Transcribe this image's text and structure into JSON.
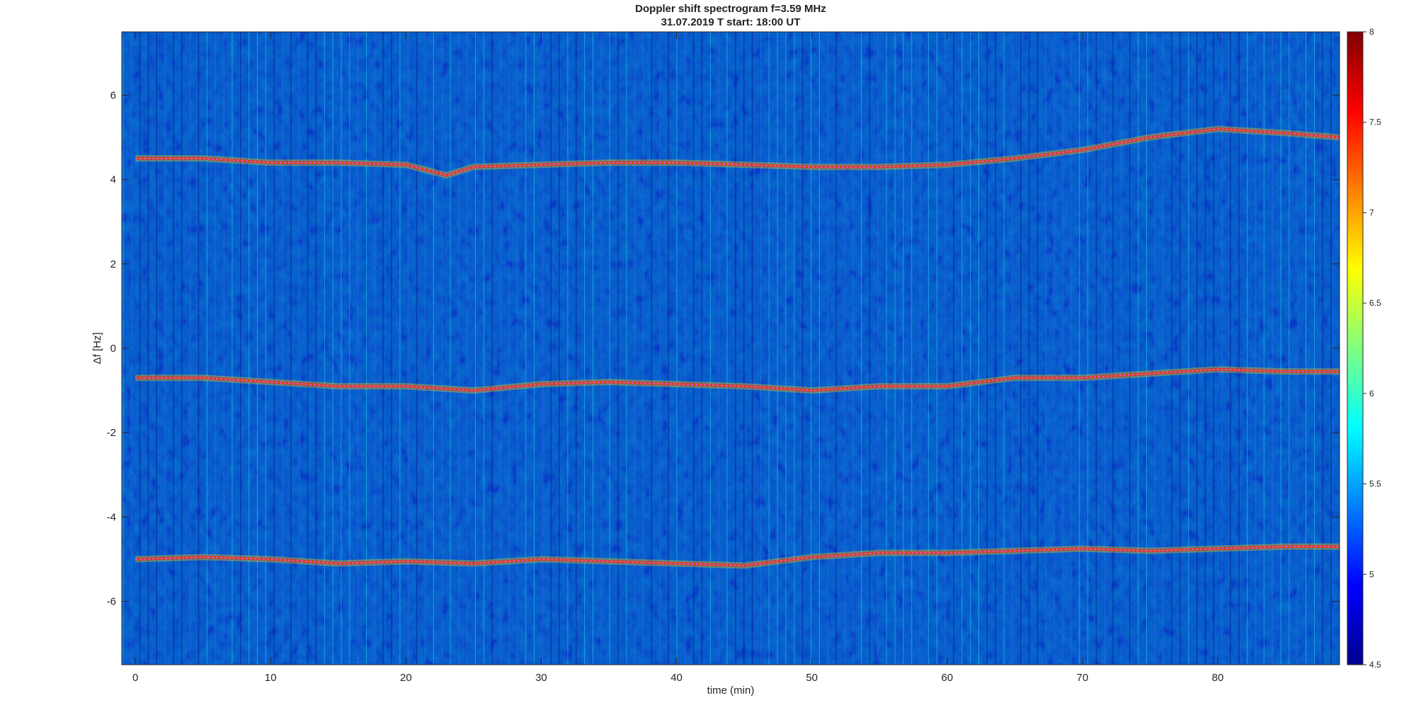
{
  "chart_data": {
    "type": "heatmap",
    "title": "Doppler shift spectrogram f=3.59 MHz",
    "subtitle": "31.07.2019   T start: 18:00 UT",
    "xlabel": "time (min)",
    "ylabel": "Δf [Hz]",
    "xlim": [
      -1,
      89
    ],
    "ylim": [
      -7.5,
      7.5
    ],
    "x_ticks": [
      0,
      10,
      20,
      30,
      40,
      50,
      60,
      70,
      80
    ],
    "y_ticks": [
      6,
      4,
      2,
      0,
      -2,
      -4,
      -6
    ],
    "colorbar": {
      "colormap": "jet",
      "range": [
        4.5,
        8
      ],
      "ticks": [
        8,
        7.5,
        7,
        6.5,
        6,
        5.5,
        5,
        4.5
      ]
    },
    "traces": [
      {
        "time": [
          0,
          5,
          10,
          15,
          20,
          23,
          25,
          30,
          35,
          40,
          45,
          50,
          55,
          60,
          65,
          70,
          75,
          80,
          85,
          89
        ],
        "df": [
          4.5,
          4.5,
          4.4,
          4.4,
          4.35,
          4.1,
          4.3,
          4.35,
          4.4,
          4.4,
          4.35,
          4.3,
          4.3,
          4.35,
          4.5,
          4.7,
          5.0,
          5.2,
          5.1,
          5.0
        ]
      },
      {
        "time": [
          0,
          5,
          10,
          15,
          20,
          25,
          30,
          35,
          40,
          45,
          50,
          55,
          60,
          65,
          70,
          75,
          80,
          85,
          89
        ],
        "df": [
          -0.7,
          -0.7,
          -0.8,
          -0.9,
          -0.9,
          -1.0,
          -0.85,
          -0.8,
          -0.85,
          -0.9,
          -1.0,
          -0.9,
          -0.9,
          -0.7,
          -0.7,
          -0.6,
          -0.5,
          -0.55,
          -0.55
        ]
      },
      {
        "time": [
          0,
          5,
          10,
          15,
          20,
          25,
          30,
          35,
          40,
          45,
          50,
          55,
          60,
          65,
          70,
          75,
          80,
          85,
          89
        ],
        "df": [
          -5.0,
          -4.95,
          -5.0,
          -5.1,
          -5.05,
          -5.1,
          -5.0,
          -5.05,
          -5.1,
          -5.15,
          -4.95,
          -4.85,
          -4.85,
          -4.8,
          -4.75,
          -4.8,
          -4.75,
          -4.7,
          -4.7
        ]
      }
    ]
  }
}
